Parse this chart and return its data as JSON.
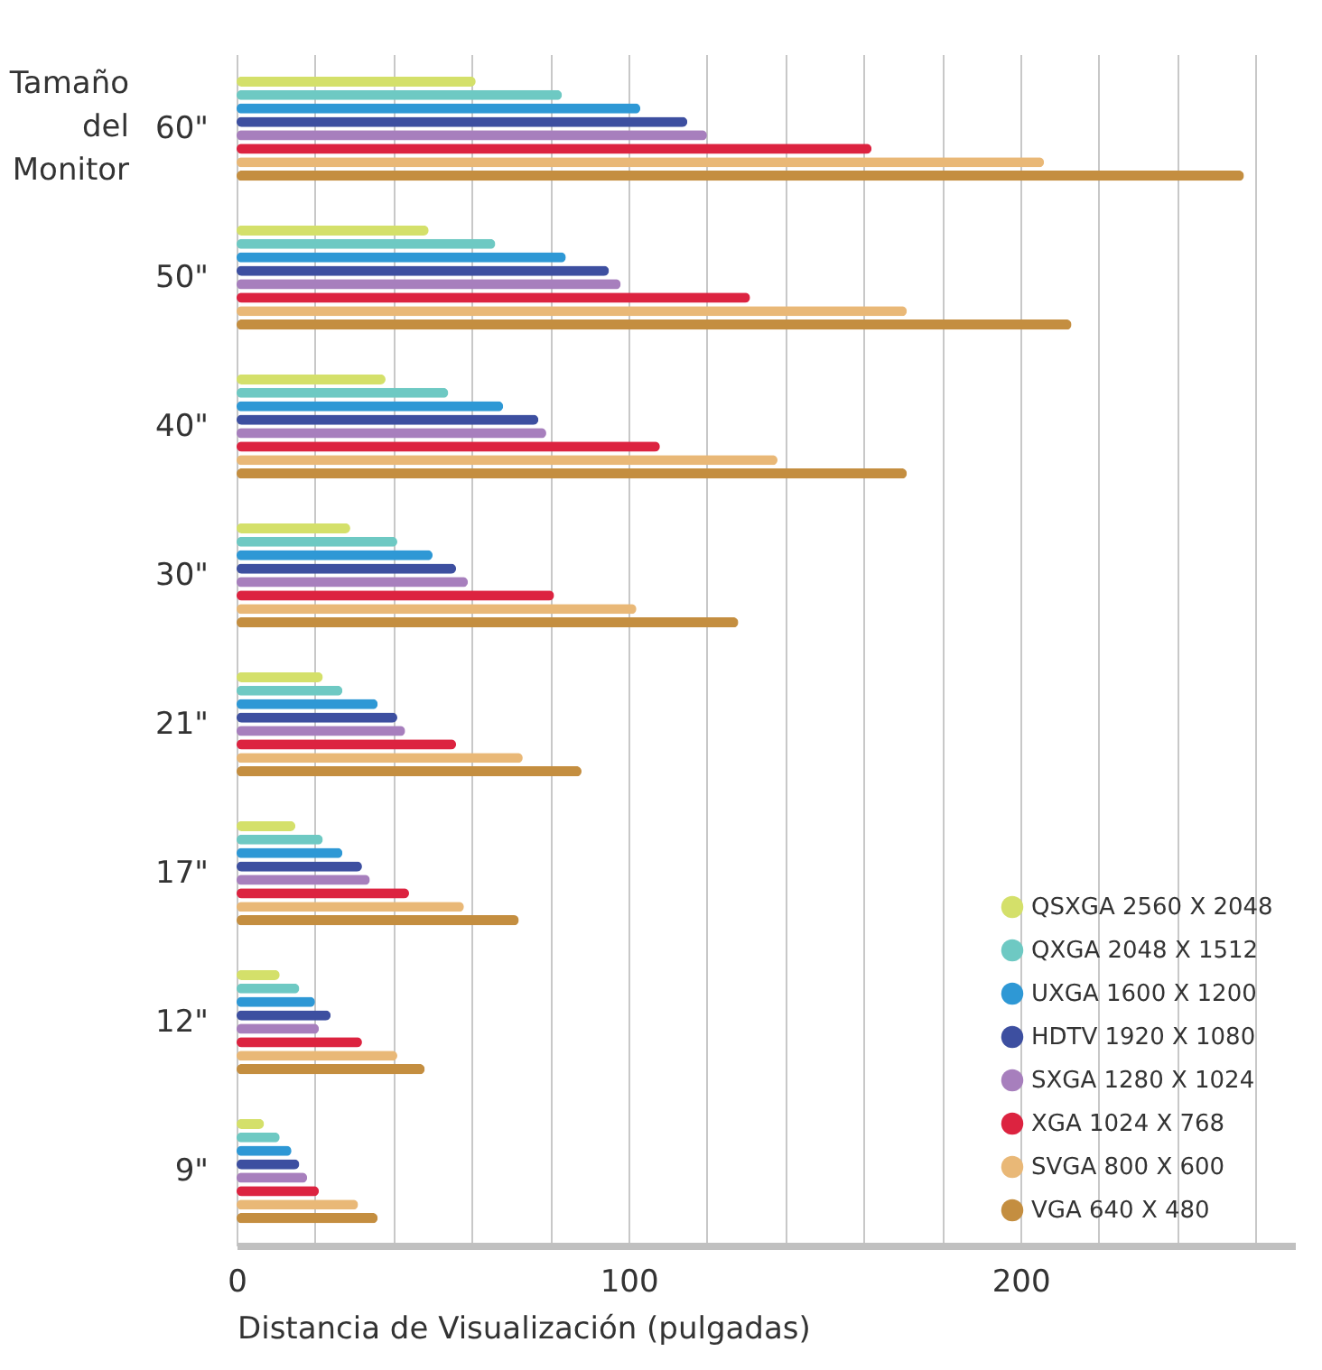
{
  "chart_data": {
    "type": "bar",
    "orientation": "horizontal",
    "xlabel": "Distancia de Visualización (pulgadas)",
    "ylabel": "Tamaño del Monitor",
    "categories": [
      "60\"",
      "50\"",
      "40\"",
      "30\"",
      "21\"",
      "17\"",
      "12\"",
      "9\""
    ],
    "series": [
      {
        "name": "QSXGA 2560 X 2048",
        "color": "#d4e06a",
        "values": [
          61,
          49,
          38,
          29,
          22,
          15,
          11,
          7
        ]
      },
      {
        "name": "QXGA 2048 X 1512",
        "color": "#6ec9c3",
        "values": [
          83,
          66,
          54,
          41,
          27,
          22,
          16,
          11
        ]
      },
      {
        "name": "UXGA 1600 X 1200",
        "color": "#2e98d5",
        "values": [
          103,
          84,
          68,
          50,
          36,
          27,
          20,
          14
        ]
      },
      {
        "name": "HDTV 1920 X 1080",
        "color": "#3d4fa0",
        "values": [
          115,
          95,
          77,
          56,
          41,
          32,
          24,
          16
        ]
      },
      {
        "name": "SXGA 1280 X 1024",
        "color": "#a77fbd",
        "values": [
          120,
          98,
          79,
          59,
          43,
          34,
          21,
          18
        ]
      },
      {
        "name": "XGA 1024 X 768",
        "color": "#dc2340",
        "values": [
          162,
          131,
          108,
          81,
          56,
          44,
          32,
          21
        ]
      },
      {
        "name": "SVGA 800 X 600",
        "color": "#e9b877",
        "values": [
          206,
          171,
          138,
          102,
          73,
          58,
          41,
          31
        ]
      },
      {
        "name": "VGA 640 X 480",
        "color": "#c48e40",
        "values": [
          257,
          213,
          171,
          128,
          88,
          72,
          48,
          36
        ]
      }
    ],
    "xlim": [
      0,
      270
    ],
    "xticks": [
      0,
      {
        "value": 20,
        "label": null
      },
      {
        "value": 40,
        "label": null
      },
      {
        "value": 60,
        "label": null
      },
      {
        "value": 80,
        "label": null
      },
      100,
      {
        "value": 120,
        "label": null
      },
      {
        "value": 140,
        "label": null
      },
      {
        "value": 160,
        "label": null
      },
      {
        "value": 180,
        "label": null
      },
      200,
      {
        "value": 220,
        "label": null
      },
      {
        "value": 240,
        "label": null
      },
      {
        "value": 260,
        "label": null
      }
    ],
    "grid": "x",
    "legend": "bottom right"
  }
}
